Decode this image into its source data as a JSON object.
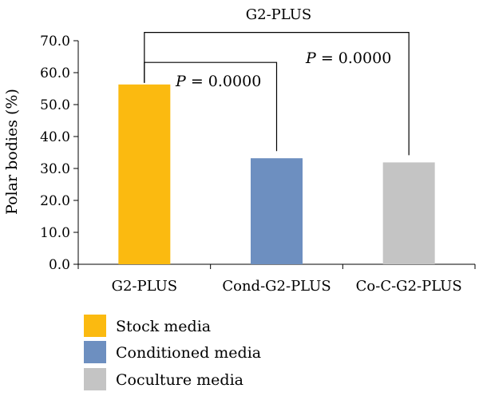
{
  "chart_data": {
    "type": "bar",
    "title": "G2-PLUS",
    "xlabel": "",
    "ylabel": "Polar bodies (%)",
    "ylim": [
      0,
      70
    ],
    "yticks": [
      "0.0",
      "10.0",
      "20.0",
      "30.0",
      "40.0",
      "50.0",
      "60.0",
      "70.0"
    ],
    "grid": false,
    "categories": [
      "G2-PLUS",
      "Cond-G2-PLUS",
      "Co-C-G2-PLUS"
    ],
    "values": [
      56.3,
      33.2,
      31.9
    ],
    "colors": [
      "#FBBA10",
      "#6D8FC0",
      "#C4C4C4"
    ],
    "legend": {
      "placement": "bottom-left",
      "entries": [
        {
          "label": "Stock media",
          "color": "#FBBA10"
        },
        {
          "label": "Conditioned media",
          "color": "#6D8FC0"
        },
        {
          "label": "Coculture media",
          "color": "#C4C4C4"
        }
      ]
    },
    "annotations": [
      {
        "italic": "P",
        "text": " = 0.0000",
        "from": 0,
        "to": 1
      },
      {
        "italic": "P",
        "text": " = 0.0000",
        "from": 0,
        "to": 2
      }
    ]
  }
}
